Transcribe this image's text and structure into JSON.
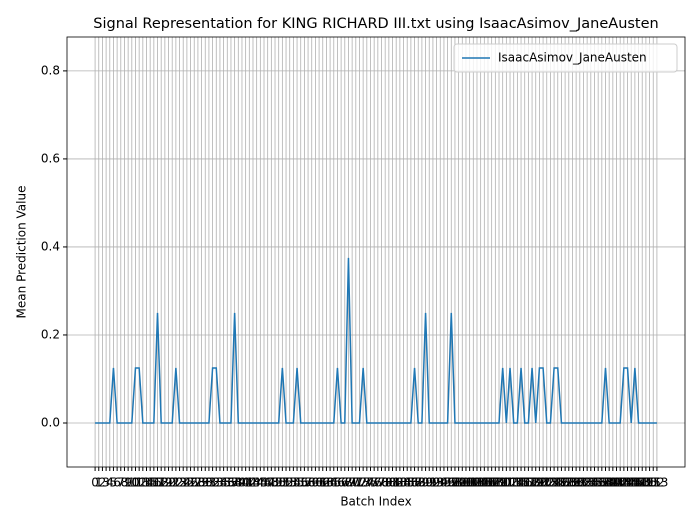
{
  "chart_data": {
    "type": "line",
    "title": "Signal Representation for KING RICHARD III.txt using IsaacAsimov_JaneAusten",
    "xlabel": "Batch Index",
    "ylabel": "Mean Prediction Value",
    "x": [
      0,
      1,
      2,
      3,
      4,
      5,
      6,
      7,
      8,
      9,
      10,
      11,
      12,
      13,
      14,
      15,
      16,
      17,
      18,
      19,
      20,
      21,
      22,
      23,
      24,
      25,
      26,
      27,
      28,
      29,
      30,
      31,
      32,
      33,
      34,
      35,
      36,
      37,
      38,
      39,
      40,
      41,
      42,
      43,
      44,
      45,
      46,
      47,
      48,
      49,
      50,
      51,
      52,
      53,
      54,
      55,
      56,
      57,
      58,
      59,
      60,
      61,
      62,
      63,
      64,
      65,
      66,
      67,
      68,
      69,
      70,
      71,
      72,
      73,
      74,
      75,
      76,
      77,
      78,
      79,
      80,
      81,
      82,
      83,
      84,
      85,
      86,
      87,
      88,
      89,
      90,
      91,
      92,
      93,
      94,
      95,
      96,
      97,
      98,
      99,
      100,
      101,
      102,
      103,
      104,
      105,
      106,
      107,
      108,
      109,
      110,
      111,
      112,
      113,
      114,
      115,
      116,
      117,
      118,
      119,
      120,
      121,
      122,
      123,
      124,
      125,
      126,
      127,
      128,
      129,
      130,
      131,
      132,
      133,
      134,
      135,
      136,
      137,
      138,
      139,
      140,
      141,
      142,
      143,
      144,
      145,
      146,
      147,
      148,
      149,
      150,
      151,
      152,
      153
    ],
    "series": [
      {
        "name": "IsaacAsimov_JaneAusten",
        "color": "#1f77b4",
        "values": [
          0,
          0,
          0,
          0,
          0,
          0.125,
          0,
          0,
          0,
          0,
          0,
          0.125,
          0.125,
          0,
          0,
          0,
          0,
          0.25,
          0,
          0,
          0,
          0,
          0.125,
          0,
          0,
          0,
          0,
          0,
          0,
          0,
          0,
          0,
          0.125,
          0.125,
          0,
          0,
          0,
          0,
          0.25,
          0,
          0,
          0,
          0,
          0,
          0,
          0,
          0,
          0,
          0,
          0,
          0,
          0.125,
          0,
          0,
          0,
          0.125,
          0,
          0,
          0,
          0,
          0,
          0,
          0,
          0,
          0,
          0,
          0.125,
          0,
          0,
          0.375,
          0,
          0,
          0,
          0.125,
          0,
          0,
          0,
          0,
          0,
          0,
          0,
          0,
          0,
          0,
          0,
          0,
          0,
          0.125,
          0,
          0,
          0.25,
          0,
          0,
          0,
          0,
          0,
          0,
          0.25,
          0,
          0,
          0,
          0,
          0,
          0,
          0,
          0,
          0,
          0,
          0,
          0,
          0,
          0.125,
          0,
          0.125,
          0,
          0,
          0.125,
          0,
          0,
          0.125,
          0,
          0.125,
          0.125,
          0,
          0,
          0.125,
          0.125,
          0,
          0,
          0,
          0,
          0,
          0,
          0,
          0,
          0,
          0,
          0,
          0,
          0.125,
          0,
          0,
          0,
          0,
          0.125,
          0.125,
          0,
          0.125,
          0,
          0,
          0,
          0,
          0,
          0
        ]
      }
    ],
    "xlim": [
      -7.65,
      160.65
    ],
    "xticks": [
      0,
      1,
      2,
      3,
      4,
      5,
      6,
      7,
      8,
      9,
      10,
      11,
      12,
      13,
      14,
      15,
      16,
      17,
      18,
      19,
      20,
      21,
      22,
      23,
      24,
      25,
      26,
      27,
      28,
      29,
      30,
      31,
      32,
      33,
      34,
      35,
      36,
      37,
      38,
      39,
      40,
      41,
      42,
      43,
      44,
      45,
      46,
      47,
      48,
      49,
      50,
      51,
      52,
      53,
      54,
      55,
      56,
      57,
      58,
      59,
      60,
      61,
      62,
      63,
      64,
      65,
      66,
      67,
      68,
      69,
      70,
      71,
      72,
      73,
      74,
      75,
      76,
      77,
      78,
      79,
      80,
      81,
      82,
      83,
      84,
      85,
      86,
      87,
      88,
      89,
      90,
      91,
      92,
      93,
      94,
      95,
      96,
      97,
      98,
      99,
      100,
      101,
      102,
      103,
      104,
      105,
      106,
      107,
      108,
      109,
      110,
      111,
      112,
      113,
      114,
      115,
      116,
      117,
      118,
      119,
      120,
      121,
      122,
      123,
      124,
      125,
      126,
      127,
      128,
      129,
      130,
      131,
      132,
      133,
      134,
      135,
      136,
      137,
      138,
      139,
      140,
      141,
      142,
      143,
      144,
      145,
      146,
      147,
      148,
      149,
      150,
      151,
      152,
      153
    ],
    "ylim": [
      -0.1,
      0.877
    ],
    "yticks": [
      {
        "value": 0,
        "label": "0.0"
      },
      {
        "value": 0.2,
        "label": "0.2"
      },
      {
        "value": 0.4,
        "label": "0.4"
      },
      {
        "value": 0.6,
        "label": "0.6"
      },
      {
        "value": 0.8,
        "label": "0.8"
      }
    ],
    "grid": true,
    "legend": "upper-right"
  }
}
